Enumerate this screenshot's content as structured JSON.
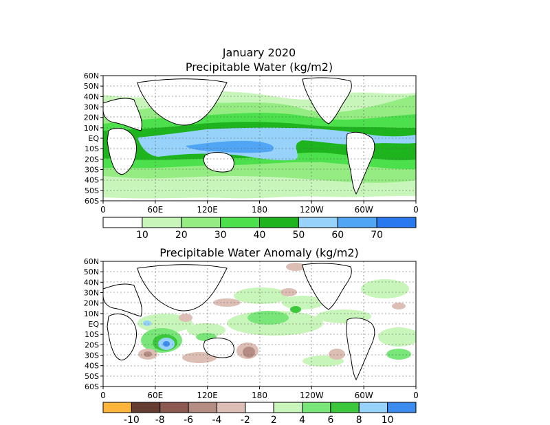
{
  "titles": {
    "line1": "January 2020",
    "line2": "Precipitable Water (kg/m2)",
    "anomaly": "Precipitable Water Anomaly (kg/m2)"
  },
  "lat_labels": [
    "60N",
    "50N",
    "40N",
    "30N",
    "20N",
    "10N",
    "EQ",
    "10S",
    "20S",
    "30S",
    "40S",
    "50S",
    "60S"
  ],
  "lon_labels": [
    "0",
    "60E",
    "120E",
    "180",
    "120W",
    "60W",
    "0"
  ],
  "top_colorbar": {
    "colors": [
      "#ffffff",
      "#c8f5b9",
      "#94ec83",
      "#4ce04c",
      "#1eb41e",
      "#96d2fa",
      "#50a5f5",
      "#2878f0"
    ],
    "labels": [
      "10",
      "20",
      "30",
      "40",
      "50",
      "60",
      "70"
    ]
  },
  "bottom_colorbar": {
    "colors": [
      "#ffb43c",
      "#643c32",
      "#8c5a50",
      "#b48c82",
      "#dcbeb4",
      "#ffffff",
      "#c8f5b9",
      "#78e678",
      "#3cc83c",
      "#96d2fa",
      "#3c8cf0"
    ],
    "labels": [
      "-10",
      "-8",
      "-6",
      "-4",
      "-2",
      "2",
      "4",
      "6",
      "8",
      "10"
    ]
  }
}
